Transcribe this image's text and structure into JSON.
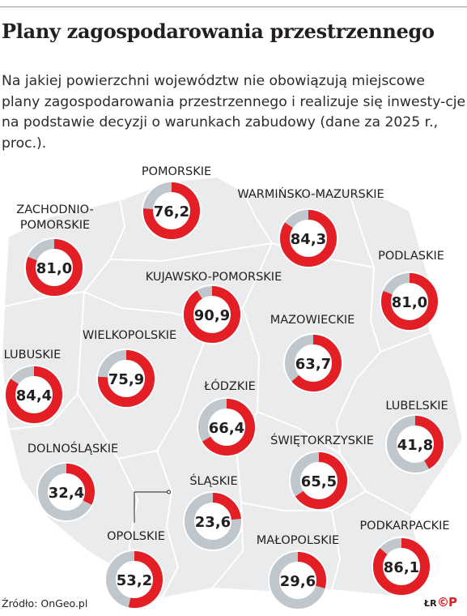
{
  "title": "Plany zagospodarowania przestrzennego",
  "subtitle": "Na jakiej powierzchni województw nie obowiązują miejscowe plany zagospodarowania przestrzennego i realizuje się inwesty-cje na podstawie decyzji o warunkach zabudowy (dane za 2025 r., proc.).",
  "source": "Źródło: OnGeo.pl",
  "signature": "ŁR",
  "copyright": "©P",
  "colors": {
    "value": "#e31e24",
    "rest": "#bfc7cd",
    "map": "#e9ebec",
    "text": "#231f20"
  },
  "chart_data": {
    "type": "pie",
    "style": "donut-per-region-on-map",
    "unit": "%",
    "regions": [
      {
        "name": "POMORSKIE",
        "value": 76.2,
        "label": "76,2"
      },
      {
        "name": "WARMIŃSKO-MAZURSKIE",
        "value": 84.3,
        "label": "84,3"
      },
      {
        "name": "ZACHODNIO-POMORSKIE",
        "value": 81.0,
        "label": "81,0"
      },
      {
        "name": "PODLASKIE",
        "value": 81.0,
        "label": "81,0"
      },
      {
        "name": "KUJAWSKO-POMORSKIE",
        "value": 90.9,
        "label": "90,9"
      },
      {
        "name": "MAZOWIECKIE",
        "value": 63.7,
        "label": "63,7"
      },
      {
        "name": "WIELKOPOLSKIE",
        "value": 75.9,
        "label": "75,9"
      },
      {
        "name": "LUBUSKIE",
        "value": 84.4,
        "label": "84,4"
      },
      {
        "name": "ŁÓDZKIE",
        "value": 66.4,
        "label": "66,4"
      },
      {
        "name": "LUBELSKIE",
        "value": 41.8,
        "label": "41,8"
      },
      {
        "name": "DOLNOŚLĄSKIE",
        "value": 32.4,
        "label": "32,4"
      },
      {
        "name": "ŚWIĘTOKRZYSKIE",
        "value": 65.5,
        "label": "65,5"
      },
      {
        "name": "ŚLĄSKIE",
        "value": 23.6,
        "label": "23,6"
      },
      {
        "name": "OPOLSKIE",
        "value": 53.2,
        "label": "53,2"
      },
      {
        "name": "MAŁOPOLSKIE",
        "value": 29.6,
        "label": "29,6"
      },
      {
        "name": "PODKARPACKIE",
        "value": 86.1,
        "label": "86,1"
      }
    ]
  }
}
